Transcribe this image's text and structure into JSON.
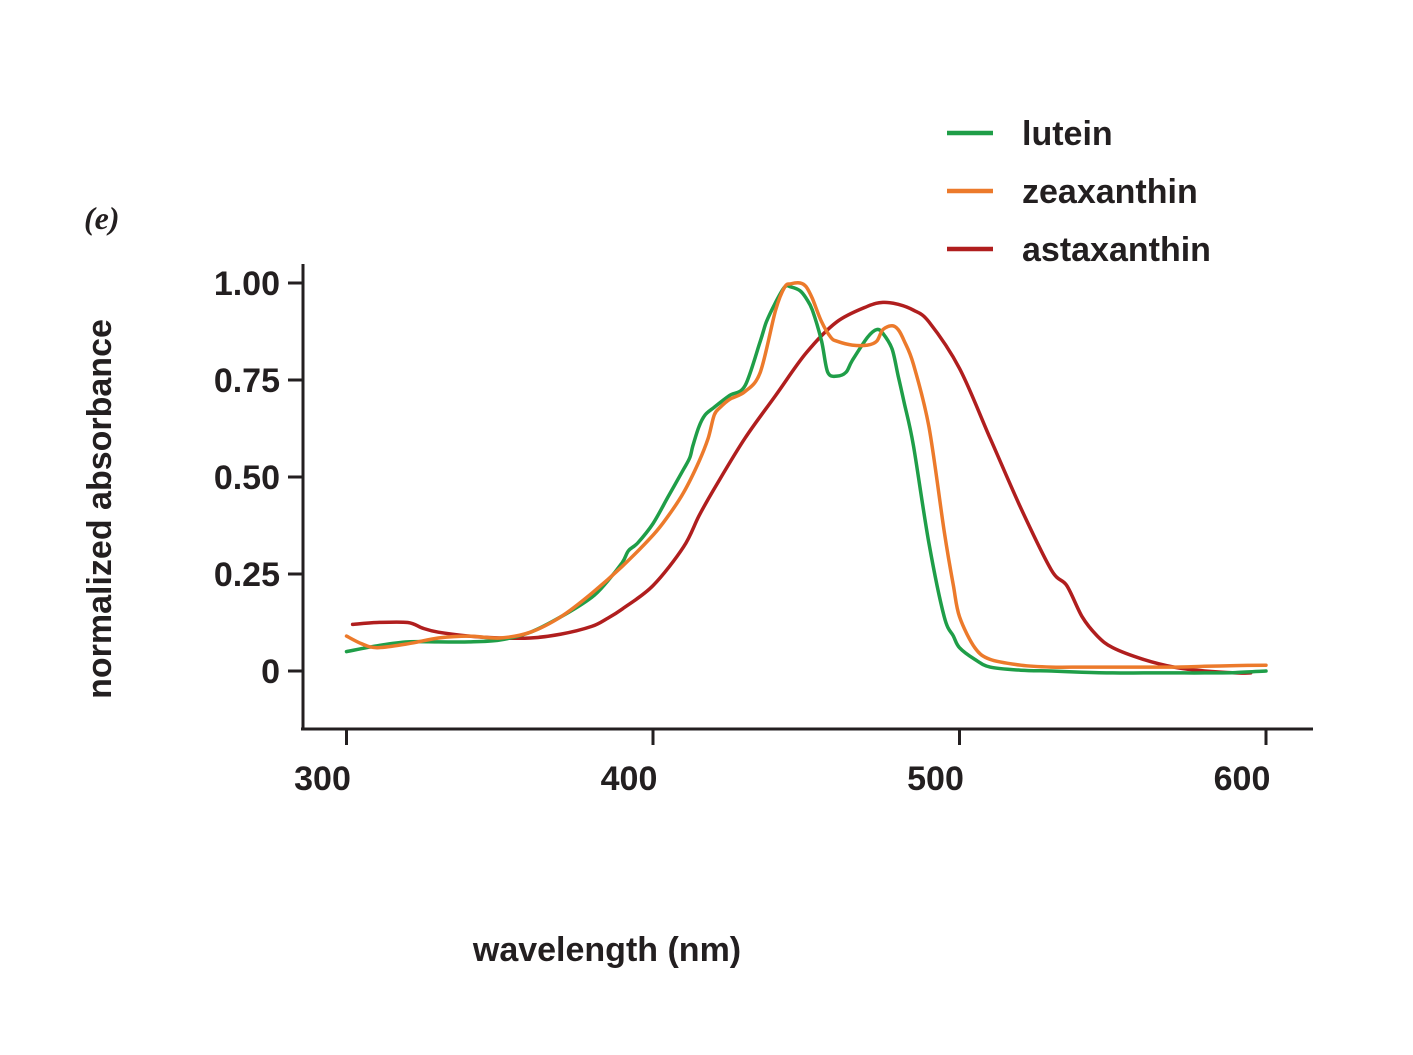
{
  "chart_data": {
    "type": "line",
    "panel_label": "(e)",
    "xlabel": "wavelength (nm)",
    "ylabel": "normalized absorbance",
    "xlim": [
      285,
      615
    ],
    "ylim": [
      -0.15,
      1.05
    ],
    "xticks": [
      300,
      400,
      500,
      600
    ],
    "xtick_labels": [
      "300",
      "400",
      "500",
      "600"
    ],
    "yticks": [
      0,
      0.25,
      0.5,
      0.75,
      1.0
    ],
    "ytick_labels": [
      "0",
      "0.25",
      "0.50",
      "0.75",
      "1.00"
    ],
    "grid": false,
    "legend_position": "top-right",
    "series": [
      {
        "name": "lutein",
        "color": "#1f9e48",
        "x": [
          300,
          310,
          320,
          330,
          340,
          350,
          360,
          370,
          380,
          385,
          390,
          392,
          395,
          400,
          405,
          410,
          412,
          413,
          415,
          417,
          420,
          425,
          430,
          435,
          437,
          440,
          443,
          445,
          448,
          450,
          452,
          455,
          457,
          460,
          463,
          465,
          470,
          473,
          475,
          478,
          480,
          482,
          485,
          490,
          495,
          498,
          500,
          505,
          510,
          520,
          530,
          540,
          550,
          560,
          570,
          580,
          590,
          600
        ],
        "y": [
          0.05,
          0.065,
          0.075,
          0.075,
          0.075,
          0.08,
          0.1,
          0.14,
          0.19,
          0.23,
          0.28,
          0.31,
          0.33,
          0.38,
          0.45,
          0.52,
          0.55,
          0.58,
          0.63,
          0.66,
          0.68,
          0.71,
          0.735,
          0.85,
          0.9,
          0.95,
          0.99,
          0.99,
          0.98,
          0.96,
          0.93,
          0.85,
          0.77,
          0.76,
          0.77,
          0.8,
          0.86,
          0.88,
          0.87,
          0.83,
          0.76,
          0.69,
          0.58,
          0.33,
          0.14,
          0.09,
          0.06,
          0.03,
          0.01,
          0.002,
          0.0,
          -0.003,
          -0.005,
          -0.005,
          -0.005,
          -0.005,
          -0.004,
          0.0
        ]
      },
      {
        "name": "zeaxanthin",
        "color": "#ec7a2b",
        "x": [
          300,
          305,
          310,
          320,
          330,
          340,
          350,
          360,
          370,
          380,
          390,
          400,
          405,
          410,
          415,
          418,
          420,
          422,
          425,
          430,
          435,
          440,
          443,
          445,
          448,
          450,
          452,
          455,
          458,
          460,
          465,
          470,
          473,
          475,
          478,
          480,
          482,
          485,
          490,
          495,
          498,
          500,
          505,
          510,
          520,
          530,
          540,
          550,
          560,
          570,
          580,
          590,
          600
        ],
        "y": [
          0.09,
          0.07,
          0.06,
          0.07,
          0.085,
          0.09,
          0.085,
          0.1,
          0.14,
          0.2,
          0.27,
          0.35,
          0.4,
          0.46,
          0.54,
          0.6,
          0.66,
          0.68,
          0.7,
          0.72,
          0.77,
          0.93,
          0.99,
          0.998,
          1.0,
          0.99,
          0.96,
          0.9,
          0.86,
          0.85,
          0.84,
          0.84,
          0.85,
          0.88,
          0.89,
          0.88,
          0.85,
          0.79,
          0.63,
          0.36,
          0.22,
          0.14,
          0.06,
          0.03,
          0.015,
          0.01,
          0.01,
          0.01,
          0.01,
          0.01,
          0.012,
          0.014,
          0.015
        ]
      },
      {
        "name": "astaxanthin",
        "color": "#b01e1e",
        "x": [
          302,
          310,
          320,
          325,
          330,
          340,
          350,
          360,
          370,
          380,
          385,
          390,
          400,
          410,
          415,
          420,
          430,
          440,
          450,
          460,
          470,
          475,
          480,
          485,
          490,
          500,
          510,
          520,
          530,
          535,
          540,
          545,
          550,
          560,
          570,
          580,
          590,
          595
        ],
        "y": [
          0.12,
          0.125,
          0.125,
          0.11,
          0.1,
          0.09,
          0.085,
          0.085,
          0.095,
          0.115,
          0.135,
          0.16,
          0.22,
          0.32,
          0.4,
          0.47,
          0.6,
          0.71,
          0.82,
          0.9,
          0.94,
          0.95,
          0.945,
          0.93,
          0.9,
          0.78,
          0.6,
          0.42,
          0.26,
          0.22,
          0.14,
          0.09,
          0.06,
          0.03,
          0.01,
          0.0,
          -0.005,
          -0.005
        ]
      }
    ]
  }
}
